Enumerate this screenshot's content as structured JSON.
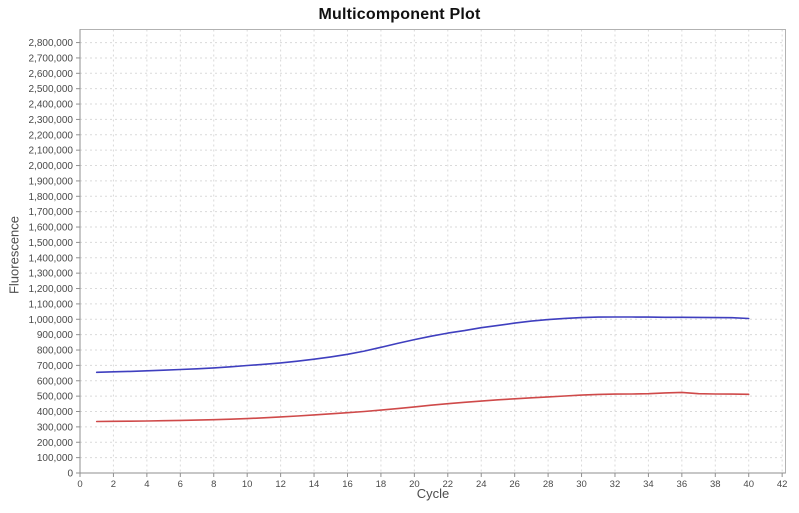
{
  "figure": {
    "title": "Multicomponent Plot"
  },
  "colors": {
    "background": "#ffffff",
    "plot_border": "#b2b2b2",
    "axis_line": "#8f8f8f",
    "grid_line": "#dadada",
    "tick_label": "#4a4a4a",
    "axis_label": "#4d4d4d",
    "title": "#111111",
    "series_blue": "#3f3fbf",
    "series_red": "#cf4a4a"
  },
  "chart_data": {
    "type": "line",
    "title": "Multicomponent Plot",
    "xlabel": "Cycle",
    "ylabel": "Fluorescence",
    "xlim": [
      0,
      42.2
    ],
    "ylim": [
      0,
      2885000
    ],
    "x_ticks": {
      "start": 0,
      "end": 42,
      "step": 2
    },
    "y_ticks": {
      "start": 0,
      "end": 2800000,
      "step": 100000
    },
    "grid": true,
    "legend_position": "none",
    "x": [
      1,
      2,
      3,
      4,
      5,
      6,
      7,
      8,
      9,
      10,
      11,
      12,
      13,
      14,
      15,
      16,
      17,
      18,
      19,
      20,
      21,
      22,
      23,
      24,
      25,
      26,
      27,
      28,
      29,
      30,
      31,
      32,
      33,
      34,
      35,
      36,
      37,
      38,
      39,
      40
    ],
    "series": [
      {
        "name": "blue",
        "color": "#3f3fbf",
        "values": [
          655000,
          658000,
          661000,
          665000,
          669000,
          673000,
          678000,
          684000,
          691000,
          699000,
          707000,
          716000,
          727000,
          740000,
          755000,
          772000,
          793000,
          818000,
          843000,
          868000,
          890000,
          910000,
          926000,
          945000,
          960000,
          975000,
          988000,
          998000,
          1006000,
          1011000,
          1014000,
          1015000,
          1015000,
          1014000,
          1013000,
          1013000,
          1012000,
          1011000,
          1010000,
          1005000
        ]
      },
      {
        "name": "red",
        "color": "#cf4a4a",
        "values": [
          335000,
          336000,
          337000,
          338000,
          340000,
          342000,
          344000,
          347000,
          350000,
          354000,
          359000,
          365000,
          371000,
          378000,
          385000,
          392000,
          400000,
          409000,
          419000,
          430000,
          441000,
          451000,
          460000,
          468000,
          476000,
          483000,
          489000,
          495000,
          501000,
          507000,
          511000,
          513000,
          514000,
          516000,
          521000,
          524000,
          516000,
          514000,
          513000,
          512000
        ]
      }
    ]
  }
}
